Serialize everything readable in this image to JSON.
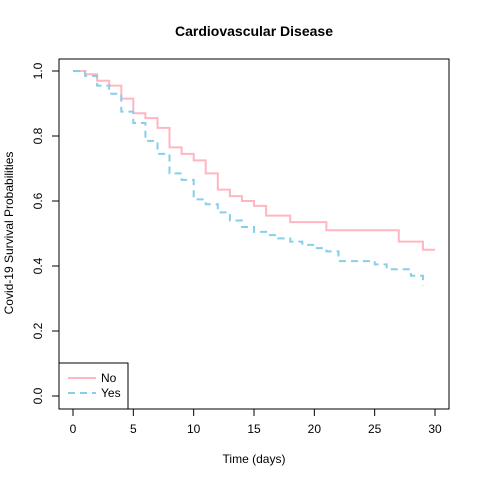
{
  "chart_data": {
    "type": "line",
    "subtype": "kaplan-meier step",
    "title": "Cardiovascular Disease",
    "xlabel": "Time (days)",
    "ylabel": "Covid-19 Survival Probabilities",
    "xlim": [
      0,
      30
    ],
    "ylim": [
      0,
      1
    ],
    "xticks": [
      0,
      5,
      10,
      15,
      20,
      25,
      30
    ],
    "yticks": [
      0.0,
      0.2,
      0.4,
      0.6,
      0.8,
      1.0
    ],
    "xtick_labels": [
      "0",
      "5",
      "10",
      "15",
      "20",
      "25",
      "30"
    ],
    "ytick_labels": [
      "0.0",
      "0.2",
      "0.4",
      "0.6",
      "0.8",
      "1.0"
    ],
    "grid": false,
    "legend": {
      "position": "bottom-left",
      "entries": [
        "No",
        "Yes"
      ]
    },
    "series": [
      {
        "name": "No",
        "color": "#FFB6C1",
        "style": "solid",
        "x": [
          0,
          1,
          2,
          3,
          4,
          5,
          6,
          7,
          8,
          9,
          10,
          11,
          12,
          13,
          14,
          15,
          16,
          18,
          21,
          27,
          29,
          30
        ],
        "y": [
          1.0,
          0.99,
          0.97,
          0.955,
          0.915,
          0.87,
          0.855,
          0.825,
          0.765,
          0.745,
          0.725,
          0.685,
          0.635,
          0.615,
          0.6,
          0.585,
          0.555,
          0.535,
          0.51,
          0.475,
          0.45,
          0.45
        ]
      },
      {
        "name": "Yes",
        "color": "#87CEEB",
        "style": "dashed",
        "x": [
          0,
          1,
          2,
          3,
          4,
          5,
          6,
          7,
          8,
          9,
          10,
          11,
          12,
          13,
          14,
          15,
          16,
          17,
          18,
          19,
          20,
          21,
          22,
          25,
          26,
          28,
          29
        ],
        "y": [
          1.0,
          0.985,
          0.955,
          0.93,
          0.875,
          0.84,
          0.785,
          0.745,
          0.685,
          0.665,
          0.605,
          0.59,
          0.565,
          0.54,
          0.52,
          0.505,
          0.495,
          0.485,
          0.475,
          0.465,
          0.455,
          0.445,
          0.415,
          0.405,
          0.39,
          0.37,
          0.34
        ]
      }
    ]
  }
}
